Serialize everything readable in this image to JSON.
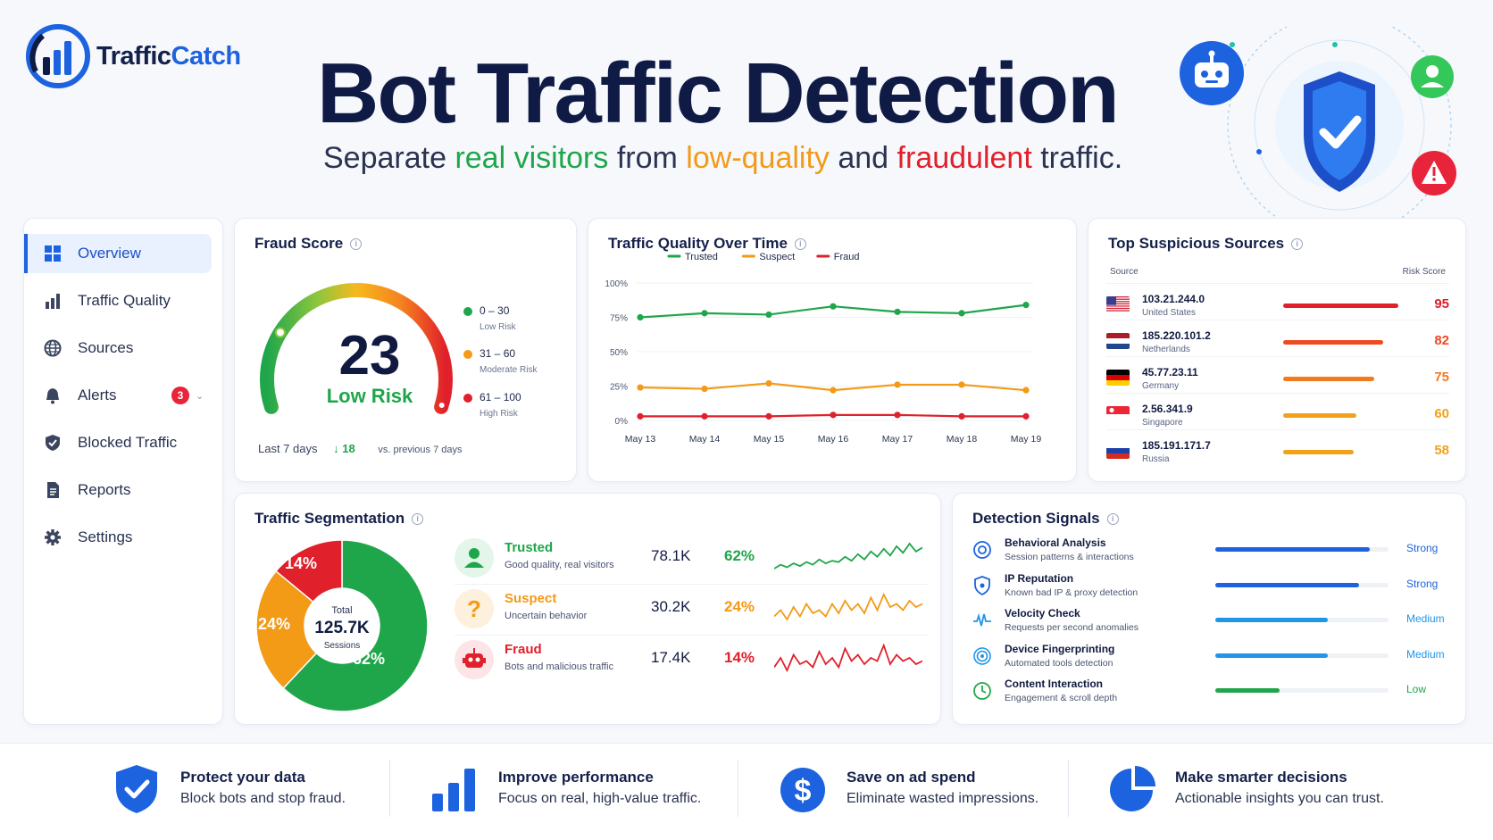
{
  "brand": {
    "name_part1": "Traffic",
    "name_part2": "Catch"
  },
  "hero": {
    "title": "Bot Traffic Detection",
    "subtitle_parts": [
      "Separate ",
      "real visitors",
      " from ",
      "low-quality",
      " and ",
      "fraudulent",
      " traffic."
    ]
  },
  "sidebar": {
    "items": [
      {
        "label": "Overview",
        "icon": "grid-icon",
        "active": true
      },
      {
        "label": "Traffic Quality",
        "icon": "bar-chart-icon"
      },
      {
        "label": "Sources",
        "icon": "globe-icon"
      },
      {
        "label": "Alerts",
        "icon": "bell-icon",
        "badge": "3"
      },
      {
        "label": "Blocked Traffic",
        "icon": "shield-icon"
      },
      {
        "label": "Reports",
        "icon": "document-icon"
      },
      {
        "label": "Settings",
        "icon": "gear-icon"
      }
    ]
  },
  "fraud_score": {
    "title": "Fraud Score",
    "value": "23",
    "value_number": 23,
    "gauge_max": 100,
    "label": "Low Risk",
    "legend": [
      {
        "range": "0 – 30",
        "label": "Low Risk",
        "color": "#1fa64a"
      },
      {
        "range": "31 – 60",
        "label": "Moderate Risk",
        "color": "#f39a16"
      },
      {
        "range": "61 – 100",
        "label": "High Risk",
        "color": "#e0202b"
      }
    ],
    "period": "Last 7 days",
    "delta": "18",
    "comparison": "vs. previous 7 days"
  },
  "chart_data": {
    "type": "line",
    "title": "Traffic Quality Over Time",
    "x": [
      "May 13",
      "May 14",
      "May 15",
      "May 16",
      "May 17",
      "May 18",
      "May 19"
    ],
    "y_ticks": [
      "0%",
      "25%",
      "50%",
      "75%",
      "100%"
    ],
    "ylim": [
      0,
      100
    ],
    "grid": true,
    "legend_position": "top-center",
    "series": [
      {
        "name": "Trusted",
        "color": "#1fa64a",
        "values": [
          75,
          78,
          77,
          83,
          79,
          78,
          84
        ]
      },
      {
        "name": "Suspect",
        "color": "#f39a16",
        "values": [
          24,
          23,
          27,
          22,
          26,
          26,
          22
        ]
      },
      {
        "name": "Fraud",
        "color": "#e0202b",
        "values": [
          3,
          3,
          3,
          4,
          4,
          3,
          3
        ]
      }
    ]
  },
  "sources": {
    "title": "Top Suspicious Sources",
    "col_source": "Source",
    "col_risk": "Risk Score",
    "rows": [
      {
        "ip": "103.21.244.0",
        "country": "United States",
        "score": "95",
        "score_number": 95,
        "color": "#e0202b",
        "flag": "us"
      },
      {
        "ip": "185.220.101.2",
        "country": "Netherlands",
        "score": "82",
        "score_number": 82,
        "color": "#ee4a22",
        "flag": "nl"
      },
      {
        "ip": "45.77.23.11",
        "country": "Germany",
        "score": "75",
        "score_number": 75,
        "color": "#f27a1e",
        "flag": "de"
      },
      {
        "ip": "2.56.341.9",
        "country": "Singapore",
        "score": "60",
        "score_number": 60,
        "color": "#f3a11a",
        "flag": "sg"
      },
      {
        "ip": "185.191.171.7",
        "country": "Russia",
        "score": "58",
        "score_number": 58,
        "color": "#f3a11a",
        "flag": "ru"
      }
    ]
  },
  "segmentation": {
    "title": "Traffic Segmentation",
    "total_label": "Total",
    "total_value": "125.7K",
    "total_unit": "Sessions",
    "rows": [
      {
        "name": "Trusted",
        "desc": "Good quality, real visitors",
        "count": "78.1K",
        "percent": "62%",
        "share": 62,
        "color": "#1fa64a",
        "icon": "user-icon",
        "spark": [
          5,
          8,
          6,
          9,
          7,
          10,
          8,
          12,
          9,
          11,
          10,
          14,
          11,
          16,
          12,
          18,
          14,
          20,
          15,
          22,
          17,
          24,
          18,
          21
        ]
      },
      {
        "name": "Suspect",
        "desc": "Uncertain behavior",
        "count": "30.2K",
        "percent": "24%",
        "share": 24,
        "color": "#f39a16",
        "icon": "question-icon",
        "spark": [
          8,
          10,
          7,
          11,
          8,
          12,
          9,
          10,
          8,
          12,
          9,
          13,
          10,
          12,
          9,
          14,
          10,
          15,
          11,
          12,
          10,
          13,
          11,
          12
        ]
      },
      {
        "name": "Fraud",
        "desc": "Bots and malicious traffic",
        "count": "17.4K",
        "percent": "14%",
        "share": 14,
        "color": "#e0202b",
        "icon": "robot-icon",
        "spark": [
          6,
          9,
          5,
          10,
          7,
          8,
          6,
          11,
          7,
          9,
          6,
          12,
          8,
          10,
          7,
          9,
          8,
          13,
          7,
          10,
          8,
          9,
          7,
          8
        ]
      }
    ]
  },
  "signals": {
    "title": "Detection Signals",
    "rows": [
      {
        "name": "Behavioral Analysis",
        "desc": "Session patterns & interactions",
        "level": "Strong",
        "strength": 0.89,
        "color": "#1d63e0",
        "icon": "target-icon"
      },
      {
        "name": "IP Reputation",
        "desc": "Known bad IP & proxy detection",
        "level": "Strong",
        "strength": 0.83,
        "color": "#1d63e0",
        "icon": "shield-icon"
      },
      {
        "name": "Velocity Check",
        "desc": "Requests per second anomalies",
        "level": "Medium",
        "strength": 0.65,
        "color": "#1f96e8",
        "icon": "pulse-icon"
      },
      {
        "name": "Device Fingerprinting",
        "desc": "Automated tools detection",
        "level": "Medium",
        "strength": 0.65,
        "color": "#1f96e8",
        "icon": "fingerprint-icon"
      },
      {
        "name": "Content Interaction",
        "desc": "Engagement & scroll depth",
        "level": "Low",
        "strength": 0.37,
        "color": "#1fa64a",
        "icon": "clock-icon"
      }
    ]
  },
  "footer": {
    "features": [
      {
        "title": "Protect your data",
        "desc": "Block bots and stop fraud.",
        "icon": "shield-check-icon"
      },
      {
        "title": "Improve performance",
        "desc": "Focus on real, high-value traffic.",
        "icon": "bar-chart-icon"
      },
      {
        "title": "Save on ad spend",
        "desc": "Eliminate wasted impressions.",
        "icon": "dollar-icon"
      },
      {
        "title": "Make smarter decisions",
        "desc": "Actionable insights you can trust.",
        "icon": "pie-chart-icon"
      }
    ]
  }
}
